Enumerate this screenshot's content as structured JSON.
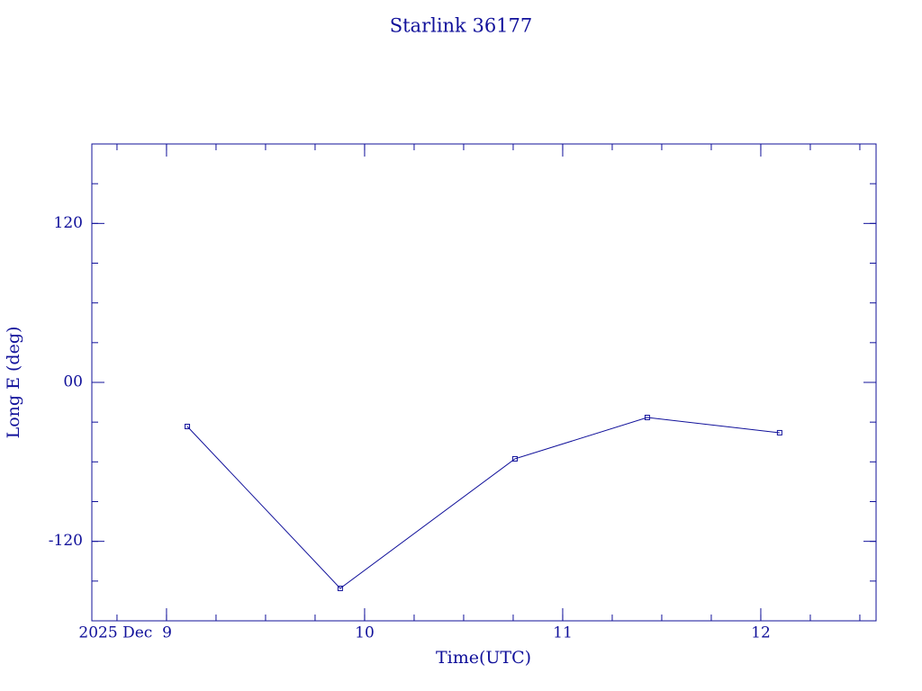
{
  "chart_data": {
    "type": "line",
    "title": "Starlink 36177",
    "x_label": "Time(UTC)",
    "y_label": "Long E (deg)",
    "x": [
      9.105,
      9.877,
      10.759,
      11.427,
      12.095
    ],
    "series": [
      {
        "color": "#10109a",
        "values": [
          -33.3,
          -155.5,
          -57.7,
          -26.5,
          -38.0
        ]
      }
    ],
    "xlim": [
      8.623,
      12.582
    ],
    "xticks": [
      {
        "value": 9,
        "label": "2025 Dec  9"
      },
      10,
      11,
      12
    ],
    "ylim": [
      -180,
      180
    ],
    "yticks": [
      -120,
      {
        "value": 0,
        "label": "00"
      },
      120
    ]
  }
}
